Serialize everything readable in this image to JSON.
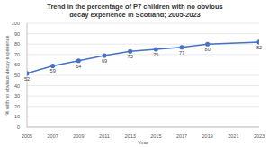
{
  "chart_data": {
    "type": "line",
    "title": "Trend in the percentage of P7 children with no obvious decay experience in Scotland; 2005-2023",
    "x_label": "Year",
    "y_label": "% with no obvious decay experience",
    "x": [
      2005,
      2007,
      2009,
      2011,
      2013,
      2015,
      2017,
      2019,
      2023
    ],
    "values": [
      52,
      59,
      64,
      69,
      73,
      75,
      77,
      80,
      82
    ],
    "color": "#4472c4",
    "marker": "circle",
    "xlim": [
      2005,
      2023
    ],
    "xticks": [
      2005,
      2007,
      2009,
      2011,
      2013,
      2015,
      2017,
      2019,
      2021,
      2023
    ],
    "ylim": [
      0,
      100
    ],
    "yticks": [
      0,
      10,
      20,
      30,
      40,
      50,
      60,
      70,
      80,
      90,
      100
    ],
    "grid": true,
    "data_labels": true
  }
}
